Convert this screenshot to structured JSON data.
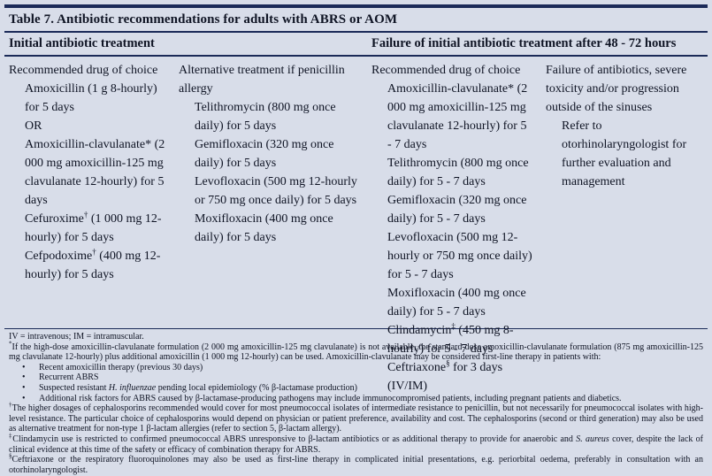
{
  "colors": {
    "background": "#d8dde9",
    "rule": "#1b2a58",
    "text": "#0f1424"
  },
  "table": {
    "title": "Table 7. Antibiotic recommendations for adults with ABRS or AOM",
    "section_headers": [
      "Initial antibiotic treatment",
      "Failure of initial antibiotic treatment after 48 - 72 hours"
    ],
    "columns": [
      {
        "header": "Recommended drug of choice",
        "items": [
          "Amoxicillin (1 g 8-hourly) for 5 days",
          "OR",
          "Amoxicillin-clavulanate* (2 000 mg amoxicillin-125 mg clavulanate 12-hourly) for 5 days",
          "Cefuroxime† (1 000 mg 12-hourly) for 5 days",
          "Cefpodoxime† (400 mg 12-hourly) for 5 days"
        ]
      },
      {
        "header": "Alternative treatment if penicillin allergy",
        "items": [
          "Telithromycin (800 mg once daily) for 5 days",
          "Gemifloxacin (320 mg once daily) for 5 days",
          "Levofloxacin (500 mg 12-hourly or 750 mg once daily) for 5 days",
          "Moxifloxacin (400 mg once daily) for 5 days"
        ]
      },
      {
        "header": "Recommended drug of choice",
        "items": [
          "Amoxicillin-clavulanate* (2 000 mg amoxicillin-125 mg clavulanate 12-hourly) for 5 - 7 days",
          "Telithromycin (800 mg once daily) for 5 - 7 days",
          "Gemifloxacin (320 mg once daily) for 5 - 7 days",
          "Levofloxacin (500 mg 12-hourly or 750 mg once daily) for 5 - 7 days",
          "Moxifloxacin (400 mg once daily) for 5 - 7 days",
          "Clindamycin‡ (450 mg 8-hourly) for 5 - 7 days",
          "Ceftriaxone§ for 3 days (IV/IM)"
        ]
      },
      {
        "header": "Failure of antibiotics, severe toxicity and/or progression outside of the sinuses",
        "items": [
          "Refer to otorhinolaryngologist for further evaluation and management"
        ]
      }
    ]
  },
  "footnotes": [
    {
      "segments": [
        {
          "text": "IV = intravenous; IM = intramuscular."
        }
      ]
    },
    {
      "sup": "*",
      "segments": [
        {
          "text": "If the high-dose amoxicillin-clavulanate formulation (2 000 mg amoxicillin-125 mg clavulanate) is not available, the standard-dose amoxicillin-clavulanate formulation (875 mg amoxicillin-125 mg clavulanate 12-hourly) plus additional amoxicillin (1 000 mg 12-hourly) can be used. Amoxicillin-clavulanate may be considered first-line therapy in patients with:"
        }
      ]
    },
    {
      "bullet": true,
      "segments": [
        {
          "text": "Recent amoxicillin therapy (previous 30 days)"
        }
      ]
    },
    {
      "bullet": true,
      "segments": [
        {
          "text": "Recurrent ABRS"
        }
      ]
    },
    {
      "bullet": true,
      "segments": [
        {
          "text": "Suspected resistant "
        },
        {
          "text": "H. influenzae",
          "italic": true
        },
        {
          "text": " pending local epidemiology (% β-lactamase production)"
        }
      ]
    },
    {
      "bullet": true,
      "segments": [
        {
          "text": "Additional risk factors for ABRS caused by β-lactamase-producing pathogens may include immunocompromised patients, including pregnant patients and diabetics."
        }
      ]
    },
    {
      "sup": "†",
      "segments": [
        {
          "text": "The higher dosages of cephalosporins recommended would cover for most pneumococcal isolates of intermediate resistance to penicillin, but not necessarily for pneumococcal isolates with high-level resistance. The particular choice of cephalosporins would depend on physician or patient preference, availability and cost. The cephalosporins (second or third generation) may also be used as alternative treatment for non-type 1 β-lactam allergies (refer to section 5, β-lactam allergy)."
        }
      ]
    },
    {
      "sup": "‡",
      "segments": [
        {
          "text": "Clindamycin use is restricted to confirmed pneumococcal ABRS unresponsive to β-lactam antibiotics or as additional therapy to provide for anaerobic and "
        },
        {
          "text": "S. aureus",
          "italic": true
        },
        {
          "text": " cover, despite the lack of clinical evidence at this time of the safety or efficacy of combination therapy for ABRS."
        }
      ]
    },
    {
      "sup": "§",
      "segments": [
        {
          "text": "Ceftriaxone or the respiratory fluoroquinolones may also be used as first-line therapy in complicated initial presentations, e.g. periorbital oedema, preferably in consultation with an otorhinolaryngologist."
        }
      ]
    }
  ]
}
